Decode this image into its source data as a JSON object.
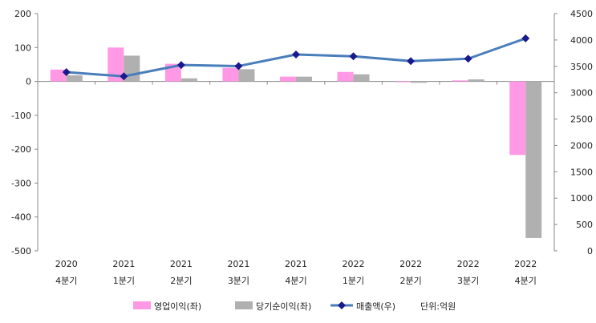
{
  "chart_data": {
    "type": "bar+line",
    "categories": [
      [
        "2020",
        "4분기"
      ],
      [
        "2021",
        "1분기"
      ],
      [
        "2021",
        "2분기"
      ],
      [
        "2021",
        "3분기"
      ],
      [
        "2021",
        "4분기"
      ],
      [
        "2022",
        "1분기"
      ],
      [
        "2022",
        "2분기"
      ],
      [
        "2022",
        "3분기"
      ],
      [
        "2022",
        "4분기"
      ]
    ],
    "series": [
      {
        "name": "영업이익(좌)",
        "type": "bar",
        "axis": "left",
        "color": "#ff99e6",
        "values": [
          35,
          100,
          52,
          40,
          14,
          28,
          -2,
          3,
          -217
        ]
      },
      {
        "name": "당기순이익(좌)",
        "type": "bar",
        "axis": "left",
        "color": "#b0b0b0",
        "values": [
          18,
          76,
          9,
          36,
          14,
          21,
          -4,
          6,
          -462
        ]
      },
      {
        "name": "매출액(우)",
        "type": "line",
        "axis": "right",
        "color": "#4a7ebb",
        "marker": "diamond",
        "marker_color": "#1a1a8c",
        "values": [
          3390,
          3310,
          3525,
          3505,
          3725,
          3690,
          3600,
          3645,
          4030
        ]
      }
    ],
    "y_left": {
      "min": -500,
      "max": 200,
      "step": 100,
      "ticks": [
        "200",
        "100",
        "0",
        "-100",
        "-200",
        "-300",
        "-400",
        "-500"
      ]
    },
    "y_right": {
      "min": 0,
      "max": 4500,
      "step": 500,
      "ticks": [
        "4500",
        "4000",
        "3500",
        "3000",
        "2500",
        "2000",
        "1500",
        "1000",
        "500",
        "0"
      ]
    },
    "unit_note": "단위:억원",
    "legend_position": "bottom",
    "grid": false
  }
}
